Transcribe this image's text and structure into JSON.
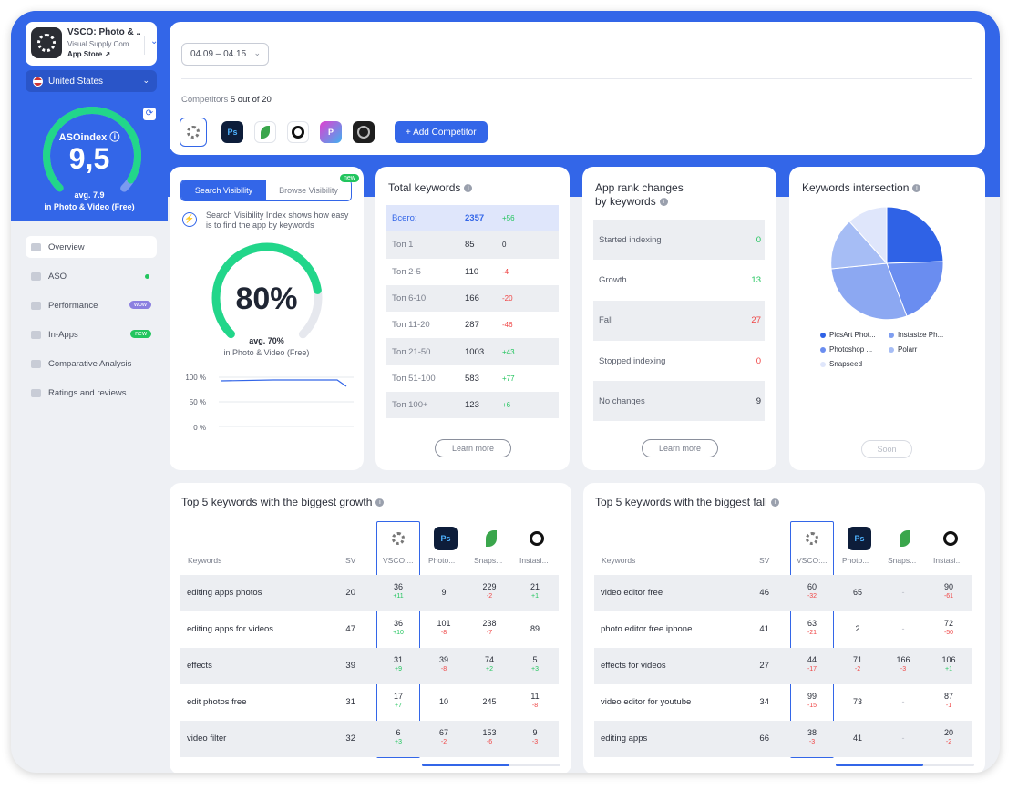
{
  "app": {
    "name": "VSCO: Photo & ...",
    "developer": "Visual Supply Com...",
    "store": "App Store"
  },
  "country": "United States",
  "aso_index": {
    "label": "ASOindex",
    "value": "9,5",
    "avg": "avg. 7.9",
    "category": "in Photo & Video (Free)",
    "level": 0.95
  },
  "nav": {
    "items": [
      {
        "label": "Overview"
      },
      {
        "label": "ASO"
      },
      {
        "label": "Performance",
        "badge": "wow"
      },
      {
        "label": "In-Apps",
        "badge": "new"
      },
      {
        "label": "Comparative Analysis"
      },
      {
        "label": "Ratings and reviews"
      }
    ]
  },
  "header": {
    "date_range": "04.09 – 04.15",
    "competitors_label": "Competitors",
    "competitors_count": "5 out of 20",
    "add_competitor": "+ Add Competitor",
    "competitor_icons": [
      "vsco-icon",
      "photoshop-icon",
      "snapseed-icon",
      "instasize-icon",
      "picsart-icon",
      "polarr-icon"
    ]
  },
  "visibility": {
    "tab_search": "Search Visibility",
    "tab_browse": "Browse Visibility",
    "tab_badge": "new",
    "info": "Search Visibility Index shows how easy is to find the app by keywords",
    "value": "80%",
    "level": 0.8,
    "avg": "avg. 70%",
    "category": "in Photo & Video (Free)",
    "axis": [
      "100 %",
      "50 %",
      "0 %"
    ]
  },
  "total_keywords": {
    "title": "Total keywords",
    "rows": [
      {
        "label": "Всего:",
        "value": "2357",
        "delta": "+56"
      },
      {
        "label": "Топ 1",
        "value": "85",
        "delta": "0"
      },
      {
        "label": "Топ 2-5",
        "value": "110",
        "delta": "-4"
      },
      {
        "label": "Топ 6-10",
        "value": "166",
        "delta": "-20"
      },
      {
        "label": "Топ 11-20",
        "value": "287",
        "delta": "-46"
      },
      {
        "label": "Топ 21-50",
        "value": "1003",
        "delta": "+43"
      },
      {
        "label": "Топ 51-100",
        "value": "583",
        "delta": "+77"
      },
      {
        "label": "Топ 100+",
        "value": "123",
        "delta": "+6"
      }
    ],
    "learn_more": "Learn more"
  },
  "rank_changes": {
    "title_line1": "App rank changes",
    "title_line2": "by keywords",
    "rows": [
      {
        "label": "Started indexing",
        "value": "0",
        "color": "#22c55e"
      },
      {
        "label": "Growth",
        "value": "13",
        "color": "#22c55e"
      },
      {
        "label": "Fall",
        "value": "27",
        "color": "#ef4444"
      },
      {
        "label": "Stopped indexing",
        "value": "0",
        "color": "#ef4444"
      },
      {
        "label": "No changes",
        "value": "9",
        "color": "#2b2f3a"
      }
    ],
    "learn_more": "Learn more"
  },
  "intersection": {
    "title": "Keywords intersection",
    "legend": [
      {
        "name": "PicsArt Phot...",
        "color": "#2f62e6"
      },
      {
        "name": "Instasize Ph...",
        "color": "#7f9ef0"
      },
      {
        "name": "Photoshop ...",
        "color": "#6a8df0"
      },
      {
        "name": "Polarr",
        "color": "#a6bdf5"
      },
      {
        "name": "Snapseed",
        "color": "#dfe6fb"
      }
    ],
    "soon": "Soon"
  },
  "growth": {
    "title": "Top 5 keywords with the biggest growth",
    "headers": {
      "keywords": "Keywords",
      "sv": "SV",
      "c1": "VSCO:...",
      "c2": "Photo...",
      "c3": "Snaps...",
      "c4": "Instasi..."
    },
    "rows": [
      {
        "kw": "editing apps photos",
        "sv": "20",
        "c1": "36",
        "d1": "+11",
        "c2": "9",
        "d2": "",
        "c3": "229",
        "d3": "-2",
        "c4": "21",
        "d4": "+1"
      },
      {
        "kw": "editing apps for videos",
        "sv": "47",
        "c1": "36",
        "d1": "+10",
        "c2": "101",
        "d2": "-8",
        "c3": "238",
        "d3": "-7",
        "c4": "89",
        "d4": ""
      },
      {
        "kw": "effects",
        "sv": "39",
        "c1": "31",
        "d1": "+9",
        "c2": "39",
        "d2": "-8",
        "c3": "74",
        "d3": "+2",
        "c4": "5",
        "d4": "+3"
      },
      {
        "kw": "edit photos free",
        "sv": "31",
        "c1": "17",
        "d1": "+7",
        "c2": "10",
        "d2": "",
        "c3": "245",
        "d3": "",
        "c4": "11",
        "d4": "-8"
      },
      {
        "kw": "video filter",
        "sv": "32",
        "c1": "6",
        "d1": "+3",
        "c2": "67",
        "d2": "-2",
        "c3": "153",
        "d3": "-6",
        "c4": "9",
        "d4": "-3"
      }
    ]
  },
  "fall": {
    "title": "Top 5 keywords with the biggest fall",
    "headers": {
      "keywords": "Keywords",
      "sv": "SV",
      "c1": "VSCO:...",
      "c2": "Photo...",
      "c3": "Snaps...",
      "c4": "Instasi..."
    },
    "rows": [
      {
        "kw": "video editor free",
        "sv": "46",
        "c1": "60",
        "d1": "-32",
        "c2": "65",
        "d2": "",
        "c3": "-",
        "d3": "",
        "c4": "90",
        "d4": "-61"
      },
      {
        "kw": "photo editor free iphone",
        "sv": "41",
        "c1": "63",
        "d1": "-21",
        "c2": "2",
        "d2": "",
        "c3": "-",
        "d3": "",
        "c4": "72",
        "d4": "-50"
      },
      {
        "kw": "effects for videos",
        "sv": "27",
        "c1": "44",
        "d1": "-17",
        "c2": "71",
        "d2": "-2",
        "c3": "166",
        "d3": "-3",
        "c4": "106",
        "d4": "+1"
      },
      {
        "kw": "video editor for youtube",
        "sv": "34",
        "c1": "99",
        "d1": "-15",
        "c2": "73",
        "d2": "",
        "c3": "-",
        "d3": "",
        "c4": "87",
        "d4": "-1"
      },
      {
        "kw": "editing apps",
        "sv": "66",
        "c1": "38",
        "d1": "-3",
        "c2": "41",
        "d2": "",
        "c3": "-",
        "d3": "",
        "c4": "20",
        "d4": "-2"
      }
    ]
  },
  "colors": {
    "accent": "#3366e8",
    "green": "#22c55e",
    "red": "#ef4444"
  }
}
